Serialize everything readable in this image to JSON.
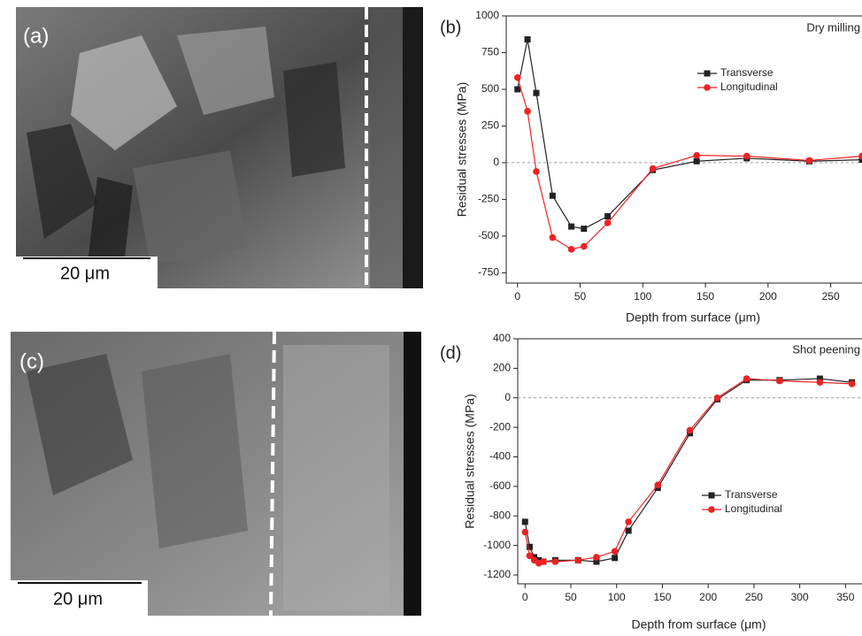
{
  "images": [
    {
      "label": "(a)",
      "scale_bar": "20 μm"
    },
    {
      "label": "(c)",
      "scale_bar": "20 μm"
    }
  ],
  "chart_data": [
    {
      "type": "line",
      "panel_label": "(b)",
      "annotation": "Dry milling",
      "x_label": "Depth from surface (μm)",
      "y_label": "Residual stresses (MPa)",
      "xlim": [
        -9,
        275
      ],
      "ylim": [
        -820,
        1000
      ],
      "xticks": [
        0,
        50,
        100,
        150,
        200,
        250
      ],
      "yticks": [
        -750,
        -500,
        -250,
        0,
        250,
        500,
        750,
        1000
      ],
      "legend": "right",
      "zero_line": true,
      "x": [
        0,
        8,
        15,
        28,
        43,
        53,
        72,
        108,
        143,
        183,
        233,
        275
      ],
      "series": [
        {
          "name": "Transverse",
          "color": "#222222",
          "marker": "square",
          "values": [
            500,
            840,
            475,
            -225,
            -435,
            -450,
            -365,
            -50,
            10,
            30,
            10,
            20
          ]
        },
        {
          "name": "Longitudinal",
          "color": "#ee2222",
          "marker": "circle",
          "values": [
            580,
            350,
            -60,
            -510,
            -590,
            -570,
            -410,
            -40,
            50,
            45,
            15,
            45
          ]
        }
      ]
    },
    {
      "type": "line",
      "panel_label": "(d)",
      "annotation": "Shot peening",
      "x_label": "Depth from surface (μm)",
      "y_label": "Residual stresses (MPa)",
      "xlim": [
        -8,
        368
      ],
      "ylim": [
        -1260,
        400
      ],
      "xticks": [
        0,
        50,
        100,
        150,
        200,
        250,
        300,
        350
      ],
      "yticks": [
        -1200,
        -1000,
        -800,
        -600,
        -400,
        -200,
        0,
        200,
        400
      ],
      "legend": "right",
      "zero_line": true,
      "x": [
        0,
        5,
        10,
        15,
        20,
        33,
        58,
        78,
        98,
        113,
        145,
        180,
        210,
        242,
        278,
        322,
        357
      ],
      "series": [
        {
          "name": "Transverse",
          "color": "#222222",
          "marker": "square",
          "values": [
            -840,
            -1010,
            -1080,
            -1100,
            -1110,
            -1100,
            -1100,
            -1110,
            -1085,
            -900,
            -610,
            -240,
            -10,
            120,
            120,
            130,
            105
          ]
        },
        {
          "name": "Longitudinal",
          "color": "#ee2222",
          "marker": "circle",
          "values": [
            -910,
            -1070,
            -1100,
            -1120,
            -1110,
            -1110,
            -1100,
            -1080,
            -1040,
            -840,
            -590,
            -220,
            0,
            130,
            115,
            105,
            95
          ]
        }
      ]
    }
  ]
}
